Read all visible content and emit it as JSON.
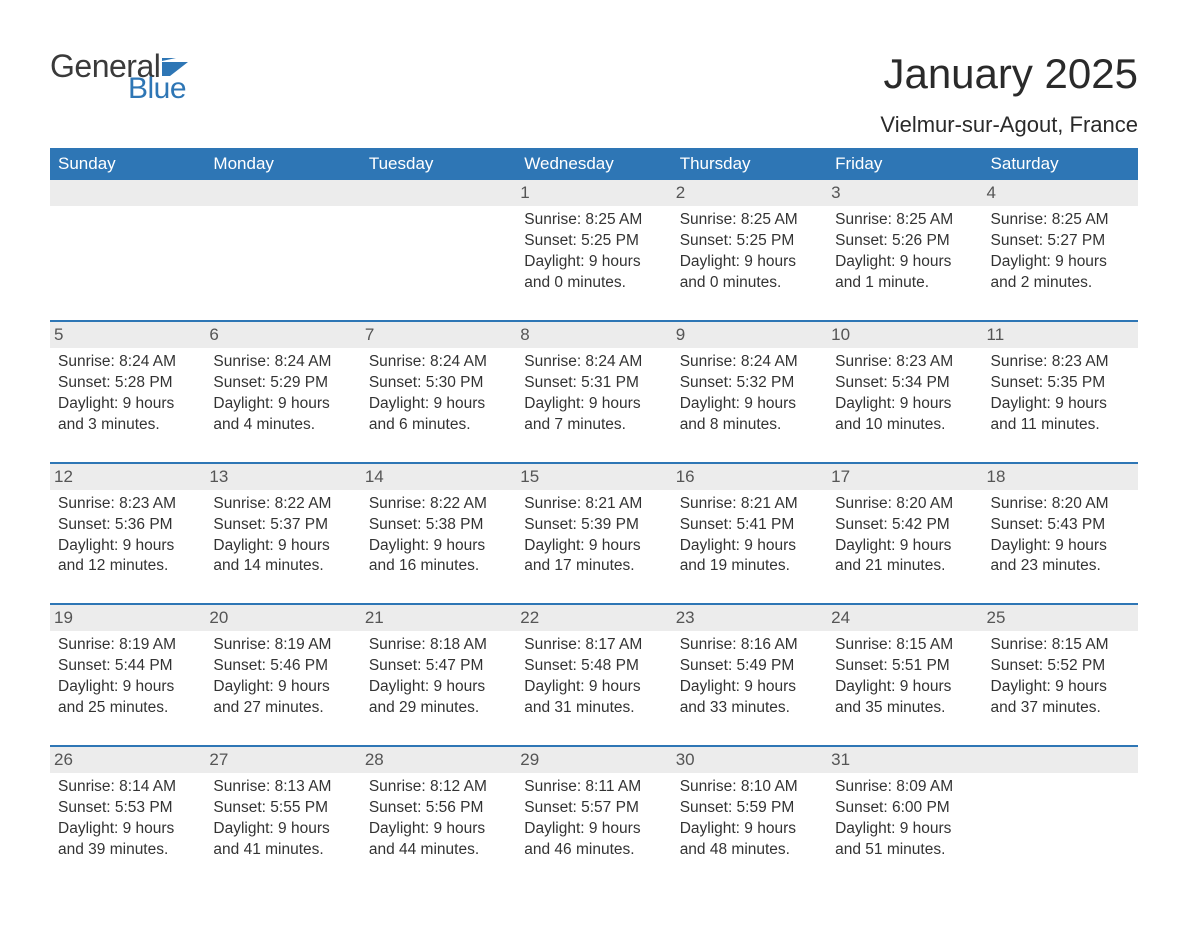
{
  "logo": {
    "text_general": "General",
    "text_blue": "Blue",
    "flag_color": "#2e76b5"
  },
  "title": "January 2025",
  "location": "Vielmur-sur-Agout, France",
  "header_bg": "#2e76b5",
  "header_fg": "#ffffff",
  "daynum_bg": "#ececec",
  "rule_color": "#2e76b5",
  "text_color": "#333333",
  "font_family": "Arial, Helvetica, sans-serif",
  "title_fontsize": 42,
  "location_fontsize": 22,
  "dayheader_fontsize": 17,
  "body_fontsize": 15.5,
  "day_headers": [
    "Sunday",
    "Monday",
    "Tuesday",
    "Wednesday",
    "Thursday",
    "Friday",
    "Saturday"
  ],
  "weeks": [
    [
      null,
      null,
      null,
      {
        "n": "1",
        "sunrise": "8:25 AM",
        "sunset": "5:25 PM",
        "daylight": "9 hours and 0 minutes."
      },
      {
        "n": "2",
        "sunrise": "8:25 AM",
        "sunset": "5:25 PM",
        "daylight": "9 hours and 0 minutes."
      },
      {
        "n": "3",
        "sunrise": "8:25 AM",
        "sunset": "5:26 PM",
        "daylight": "9 hours and 1 minute."
      },
      {
        "n": "4",
        "sunrise": "8:25 AM",
        "sunset": "5:27 PM",
        "daylight": "9 hours and 2 minutes."
      }
    ],
    [
      {
        "n": "5",
        "sunrise": "8:24 AM",
        "sunset": "5:28 PM",
        "daylight": "9 hours and 3 minutes."
      },
      {
        "n": "6",
        "sunrise": "8:24 AM",
        "sunset": "5:29 PM",
        "daylight": "9 hours and 4 minutes."
      },
      {
        "n": "7",
        "sunrise": "8:24 AM",
        "sunset": "5:30 PM",
        "daylight": "9 hours and 6 minutes."
      },
      {
        "n": "8",
        "sunrise": "8:24 AM",
        "sunset": "5:31 PM",
        "daylight": "9 hours and 7 minutes."
      },
      {
        "n": "9",
        "sunrise": "8:24 AM",
        "sunset": "5:32 PM",
        "daylight": "9 hours and 8 minutes."
      },
      {
        "n": "10",
        "sunrise": "8:23 AM",
        "sunset": "5:34 PM",
        "daylight": "9 hours and 10 minutes."
      },
      {
        "n": "11",
        "sunrise": "8:23 AM",
        "sunset": "5:35 PM",
        "daylight": "9 hours and 11 minutes."
      }
    ],
    [
      {
        "n": "12",
        "sunrise": "8:23 AM",
        "sunset": "5:36 PM",
        "daylight": "9 hours and 12 minutes."
      },
      {
        "n": "13",
        "sunrise": "8:22 AM",
        "sunset": "5:37 PM",
        "daylight": "9 hours and 14 minutes."
      },
      {
        "n": "14",
        "sunrise": "8:22 AM",
        "sunset": "5:38 PM",
        "daylight": "9 hours and 16 minutes."
      },
      {
        "n": "15",
        "sunrise": "8:21 AM",
        "sunset": "5:39 PM",
        "daylight": "9 hours and 17 minutes."
      },
      {
        "n": "16",
        "sunrise": "8:21 AM",
        "sunset": "5:41 PM",
        "daylight": "9 hours and 19 minutes."
      },
      {
        "n": "17",
        "sunrise": "8:20 AM",
        "sunset": "5:42 PM",
        "daylight": "9 hours and 21 minutes."
      },
      {
        "n": "18",
        "sunrise": "8:20 AM",
        "sunset": "5:43 PM",
        "daylight": "9 hours and 23 minutes."
      }
    ],
    [
      {
        "n": "19",
        "sunrise": "8:19 AM",
        "sunset": "5:44 PM",
        "daylight": "9 hours and 25 minutes."
      },
      {
        "n": "20",
        "sunrise": "8:19 AM",
        "sunset": "5:46 PM",
        "daylight": "9 hours and 27 minutes."
      },
      {
        "n": "21",
        "sunrise": "8:18 AM",
        "sunset": "5:47 PM",
        "daylight": "9 hours and 29 minutes."
      },
      {
        "n": "22",
        "sunrise": "8:17 AM",
        "sunset": "5:48 PM",
        "daylight": "9 hours and 31 minutes."
      },
      {
        "n": "23",
        "sunrise": "8:16 AM",
        "sunset": "5:49 PM",
        "daylight": "9 hours and 33 minutes."
      },
      {
        "n": "24",
        "sunrise": "8:15 AM",
        "sunset": "5:51 PM",
        "daylight": "9 hours and 35 minutes."
      },
      {
        "n": "25",
        "sunrise": "8:15 AM",
        "sunset": "5:52 PM",
        "daylight": "9 hours and 37 minutes."
      }
    ],
    [
      {
        "n": "26",
        "sunrise": "8:14 AM",
        "sunset": "5:53 PM",
        "daylight": "9 hours and 39 minutes."
      },
      {
        "n": "27",
        "sunrise": "8:13 AM",
        "sunset": "5:55 PM",
        "daylight": "9 hours and 41 minutes."
      },
      {
        "n": "28",
        "sunrise": "8:12 AM",
        "sunset": "5:56 PM",
        "daylight": "9 hours and 44 minutes."
      },
      {
        "n": "29",
        "sunrise": "8:11 AM",
        "sunset": "5:57 PM",
        "daylight": "9 hours and 46 minutes."
      },
      {
        "n": "30",
        "sunrise": "8:10 AM",
        "sunset": "5:59 PM",
        "daylight": "9 hours and 48 minutes."
      },
      {
        "n": "31",
        "sunrise": "8:09 AM",
        "sunset": "6:00 PM",
        "daylight": "9 hours and 51 minutes."
      },
      null
    ]
  ],
  "labels": {
    "sunrise": "Sunrise: ",
    "sunset": "Sunset: ",
    "daylight": "Daylight: "
  }
}
